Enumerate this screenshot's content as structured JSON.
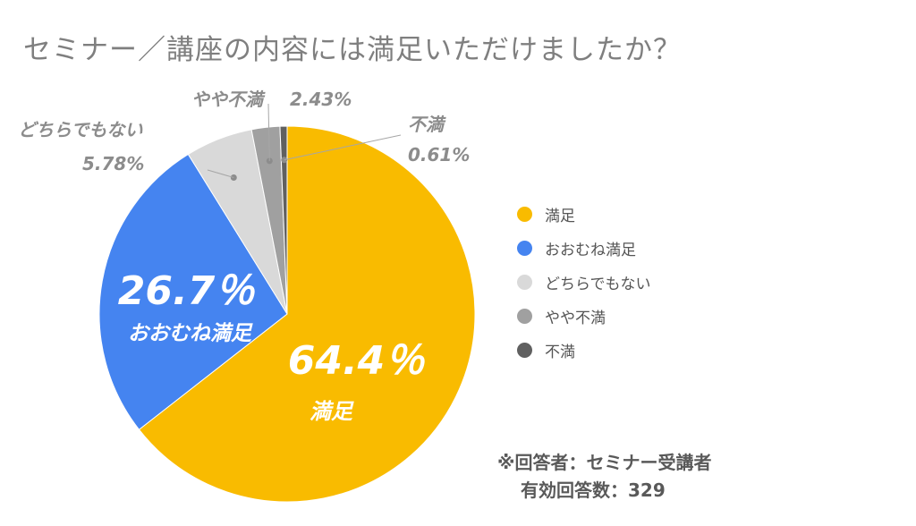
{
  "chart_data": {
    "type": "pie",
    "title": "セミナー／講座の内容には満足いただけましたか？",
    "slices": [
      {
        "name": "満足",
        "value": 64.4,
        "color": "#f9bb00",
        "label_value": "64.4％",
        "label_name": "満足"
      },
      {
        "name": "おおむね満足",
        "value": 26.7,
        "color": "#4584f0",
        "label_value": "26.7％",
        "label_name": "おおむね満足"
      },
      {
        "name": "どちらでもない",
        "value": 5.78,
        "color": "#d9d9d9",
        "label_value": "5.78%",
        "label_name": "どちらでもない"
      },
      {
        "name": "やや不満",
        "value": 2.43,
        "color": "#a0a0a0",
        "label_value": "2.43%",
        "label_name": "やや不満"
      },
      {
        "name": "不満",
        "value": 0.61,
        "color": "#606060",
        "label_value": "0.61%",
        "label_name": "不満"
      }
    ],
    "legend_placement": "right"
  },
  "footnote": {
    "respondents": "※回答者：セミナー受講者",
    "valid_count": "有効回答数：329"
  }
}
